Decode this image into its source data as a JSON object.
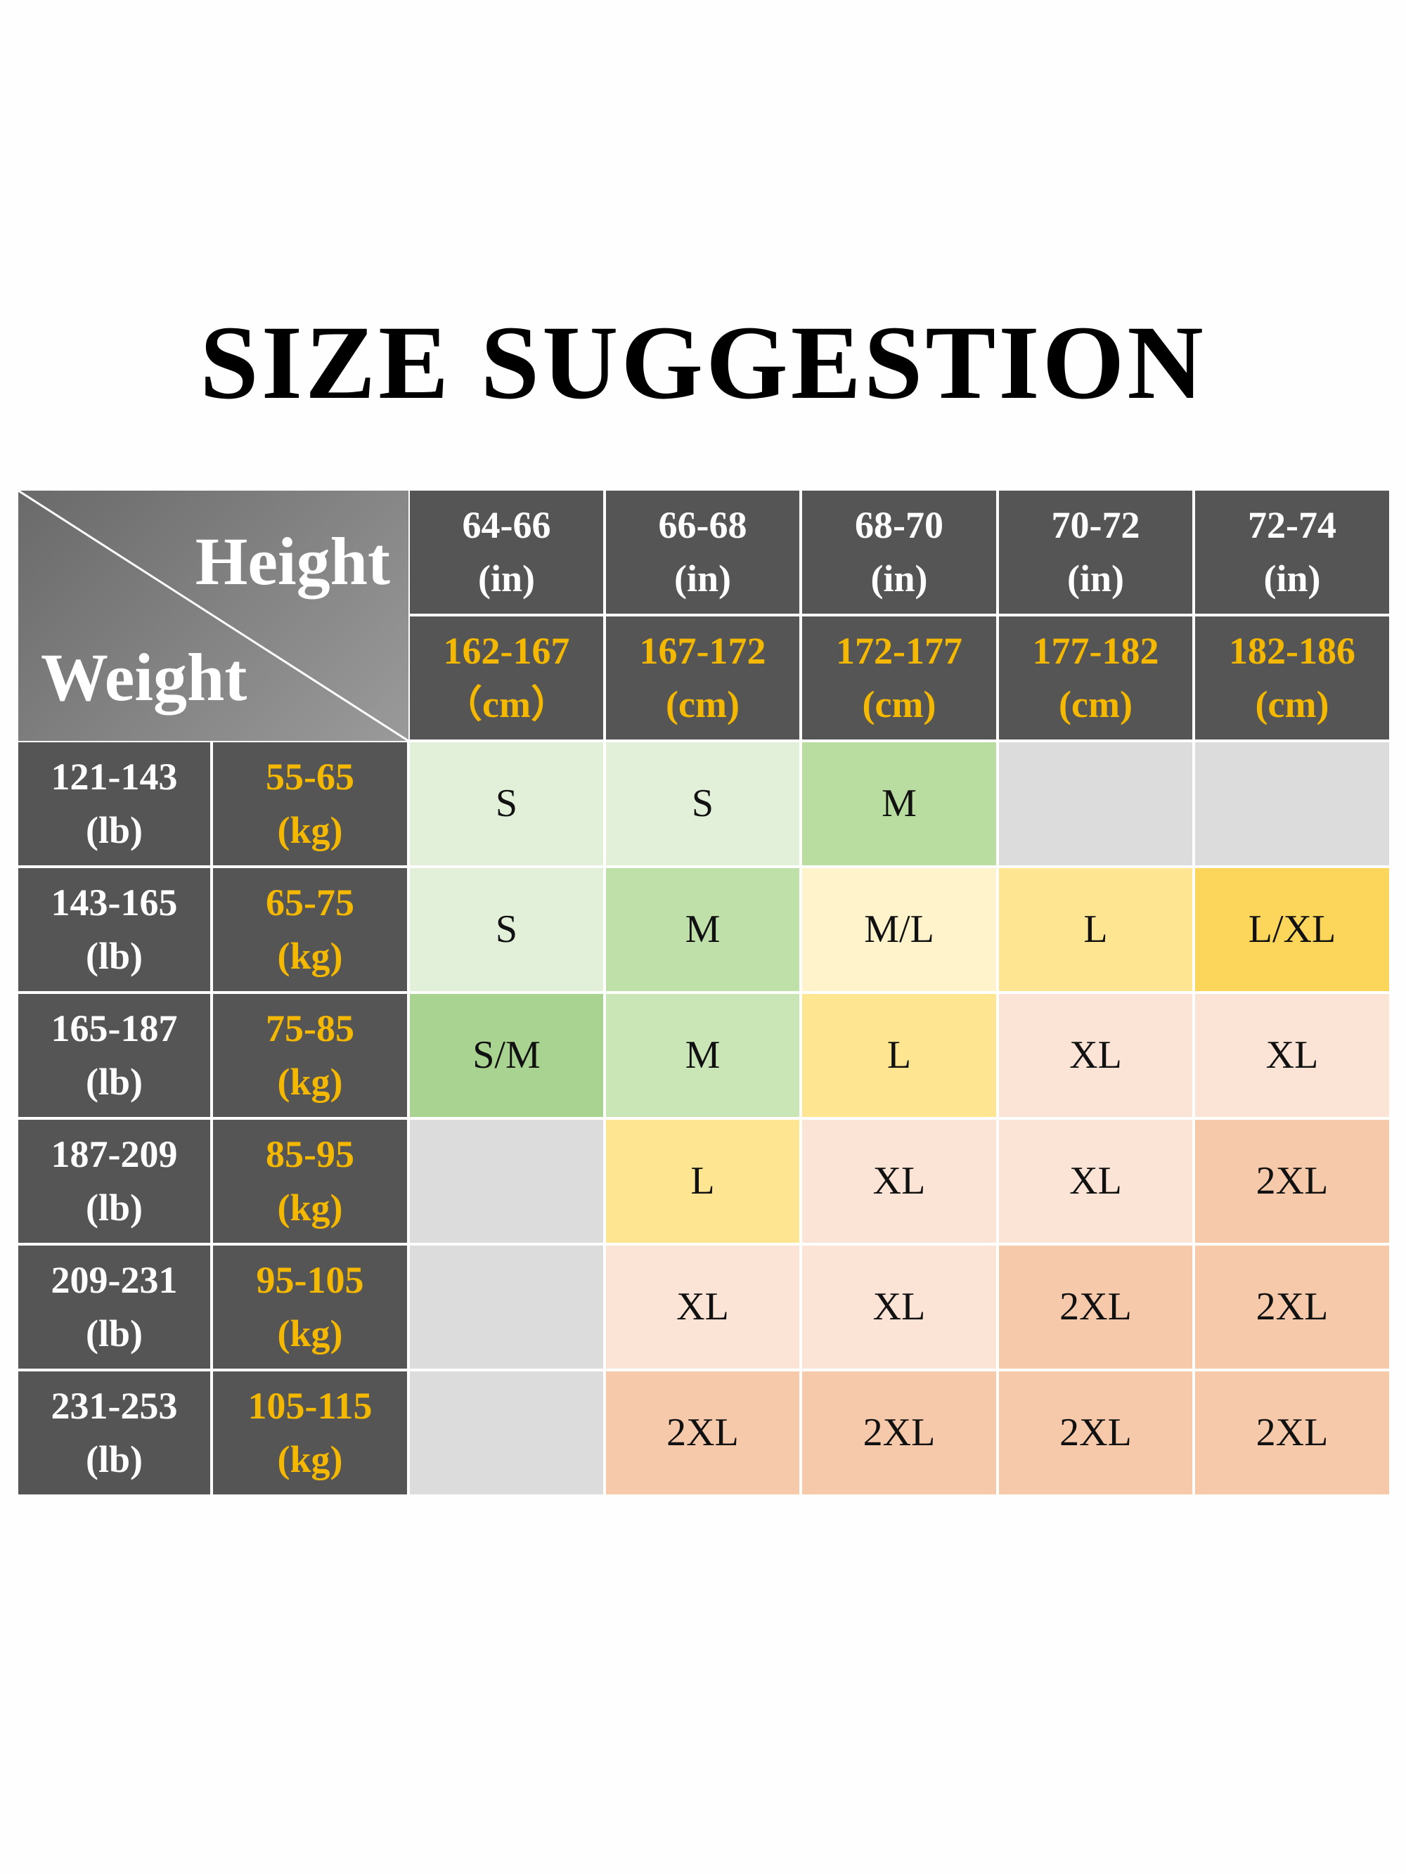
{
  "title": "SIZE SUGGESTION",
  "corner": {
    "top": "Height",
    "bottom": "Weight"
  },
  "columns": [
    {
      "in": "64-66",
      "in_unit": "(in)",
      "cm": "162-167",
      "cm_unit": "（cm）"
    },
    {
      "in": "66-68",
      "in_unit": "(in)",
      "cm": "167-172",
      "cm_unit": "(cm)"
    },
    {
      "in": "68-70",
      "in_unit": "(in)",
      "cm": "172-177",
      "cm_unit": "(cm)"
    },
    {
      "in": "70-72",
      "in_unit": "(in)",
      "cm": "177-182",
      "cm_unit": "(cm)"
    },
    {
      "in": "72-74",
      "in_unit": "(in)",
      "cm": "182-186",
      "cm_unit": "(cm)"
    }
  ],
  "rows": [
    {
      "lb": "121-143",
      "lb_unit": "(lb)",
      "kg": "55-65",
      "kg_unit": "(kg)",
      "cells": [
        {
          "text": "S",
          "color": "#e3f0d9"
        },
        {
          "text": "S",
          "color": "#e3f0d9"
        },
        {
          "text": "M",
          "color": "#b9dda0"
        },
        {
          "color": "#dcdcdc"
        },
        {
          "color": "#dcdcdc"
        }
      ]
    },
    {
      "lb": "143-165",
      "lb_unit": "(lb)",
      "kg": "65-75",
      "kg_unit": "(kg)",
      "cells": [
        {
          "text": "S",
          "color": "#e3f0d9"
        },
        {
          "text": "M",
          "color": "#bfe0a8"
        },
        {
          "text": "M/L",
          "color": "#fff3cc"
        },
        {
          "text": "L",
          "color": "#fde591"
        },
        {
          "text": "L/XL",
          "color": "#fcd65a"
        }
      ]
    },
    {
      "lb": "165-187",
      "lb_unit": "(lb)",
      "kg": "75-85",
      "kg_unit": "(kg)",
      "cells": [
        {
          "text": "S/M",
          "color": "#a8d390"
        },
        {
          "text": "M",
          "color": "#cbe6b6"
        },
        {
          "text": "L",
          "color": "#fde591"
        },
        {
          "text": "XL",
          "color": "#fbe3d5"
        },
        {
          "text": "XL",
          "color": "#fbe3d5"
        }
      ]
    },
    {
      "lb": "187-209",
      "lb_unit": "(lb)",
      "kg": "85-95",
      "kg_unit": "(kg)",
      "cells": [
        {
          "color": "#dcdcdc"
        },
        {
          "text": "L",
          "color": "#fde591"
        },
        {
          "text": "XL",
          "color": "#fbe3d5"
        },
        {
          "text": "XL",
          "color": "#fbe3d5"
        },
        {
          "text": "2XL",
          "color": "#f6c9aa"
        }
      ]
    },
    {
      "lb": "209-231",
      "lb_unit": "(lb)",
      "kg": "95-105",
      "kg_unit": "(kg)",
      "cells": [
        {
          "color": "#dcdcdc"
        },
        {
          "text": "XL",
          "color": "#fbe3d5"
        },
        {
          "text": "XL",
          "color": "#fbe3d5"
        },
        {
          "text": "2XL",
          "color": "#f6c9aa"
        },
        {
          "text": "2XL",
          "color": "#f6c9aa"
        }
      ]
    },
    {
      "lb": "231-253",
      "lb_unit": "(lb)",
      "kg": "105-115",
      "kg_unit": "(kg)",
      "cells": [
        {
          "color": "#dcdcdc"
        },
        {
          "text": "2XL",
          "color": "#f6c9aa"
        },
        {
          "text": "2XL",
          "color": "#f6c9aa"
        },
        {
          "text": "2XL",
          "color": "#f6c9aa"
        },
        {
          "text": "2XL",
          "color": "#f6c9aa"
        }
      ]
    }
  ]
}
